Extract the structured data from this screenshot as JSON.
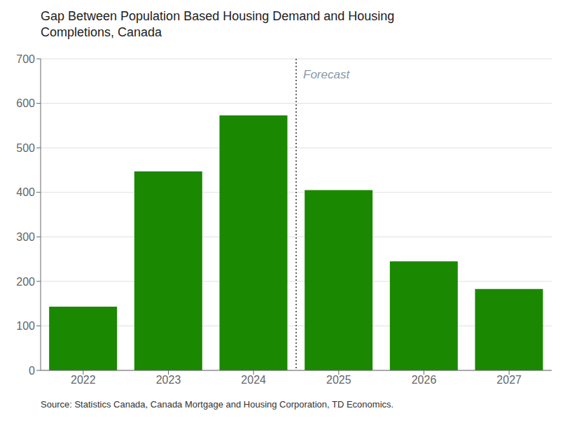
{
  "chart_data": {
    "type": "bar",
    "title": "Gap Between Population Based Housing Demand and Housing\nCompletions, Canada",
    "categories": [
      "2022",
      "2023",
      "2024",
      "2025",
      "2026",
      "2027"
    ],
    "values": [
      143,
      447,
      573,
      405,
      245,
      183
    ],
    "color": "#1a8800",
    "ylim": [
      0,
      700
    ],
    "yticks": [
      0,
      100,
      200,
      300,
      400,
      500,
      600,
      700
    ],
    "grid": true,
    "annotations": [
      {
        "text": "Forecast",
        "x": "2025",
        "color": "#8899aa"
      }
    ],
    "source": "Source: Statistics Canada, Canada Mortgage and Housing Corporation, TD Economics."
  }
}
